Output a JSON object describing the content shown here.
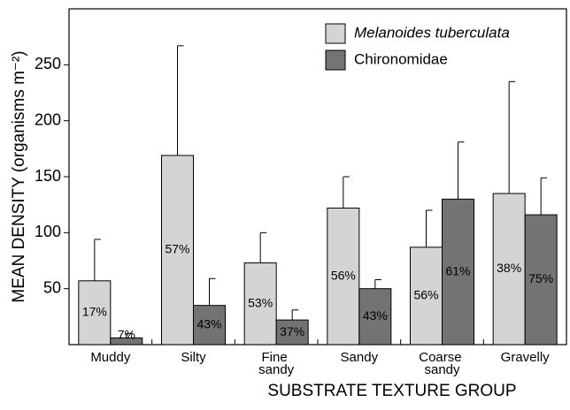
{
  "chart_data": {
    "type": "bar",
    "xlabel": "SUBSTRATE TEXTURE GROUP",
    "ylabel": "MEAN DENSITY (organisms m⁻²)",
    "categories": [
      "Muddy",
      "Silty",
      "Fine sandy",
      "Sandy",
      "Coarse sandy",
      "Gravelly"
    ],
    "series": [
      {
        "name": "Melanoides tuberculata",
        "color": "#d4d4d4",
        "italic": true,
        "values": [
          57,
          169,
          73,
          122,
          87,
          135
        ],
        "errors": [
          37,
          98,
          27,
          28,
          33,
          100
        ],
        "percent_labels": [
          "17%",
          "57%",
          "53%",
          "56%",
          "56%",
          "38%"
        ]
      },
      {
        "name": "Chironomidae",
        "color": "#737373",
        "italic": false,
        "values": [
          6,
          35,
          22,
          50,
          130,
          116
        ],
        "errors": [
          4,
          24,
          9,
          8,
          51,
          33
        ],
        "percent_labels": [
          "7%",
          "43%",
          "37%",
          "43%",
          "61%",
          "75%"
        ]
      }
    ],
    "ylim": [
      0,
      300
    ],
    "yticks": [
      50,
      100,
      150,
      200,
      250
    ],
    "grid": false,
    "legend": "upper right"
  }
}
